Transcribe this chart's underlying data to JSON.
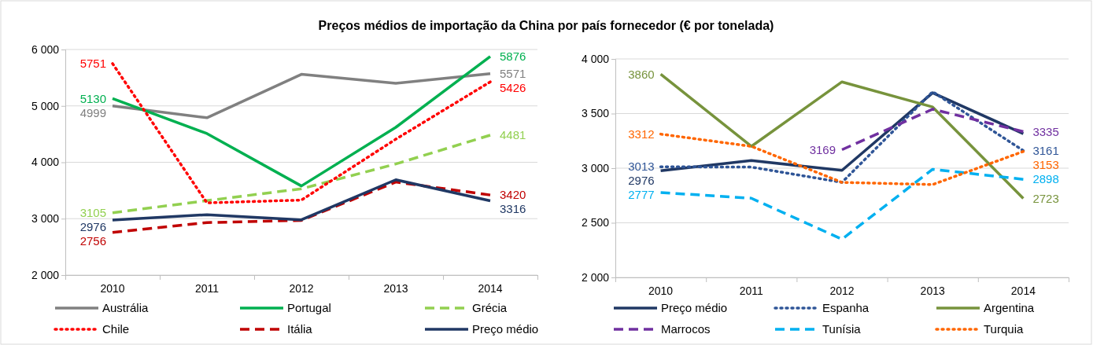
{
  "chart_data": [
    {
      "type": "line",
      "title": "Preços médios de importação da China por país fornecedor (€ por tonelada)",
      "categories": [
        "2010",
        "2011",
        "2012",
        "2013",
        "2014"
      ],
      "ylim": [
        2000,
        6000
      ],
      "yticks": [
        {
          "value": 2000,
          "label": "2 000"
        },
        {
          "value": 3000,
          "label": "3 000"
        },
        {
          "value": 4000,
          "label": "4 000"
        },
        {
          "value": 5000,
          "label": "5 000"
        },
        {
          "value": 6000,
          "label": "6 000"
        }
      ],
      "grid": "y",
      "legend": "bottom",
      "marker": "none",
      "series": [
        {
          "name": "Austrália",
          "color": "#808080",
          "line_style": "solid",
          "values": [
            4999,
            4790,
            5560,
            5400,
            5571
          ],
          "value_labels": [
            "4999",
            null,
            null,
            null,
            "5571"
          ]
        },
        {
          "name": "Portugal",
          "color": "#00b050",
          "line_style": "solid",
          "values": [
            5130,
            4510,
            3580,
            4620,
            5876
          ],
          "value_labels": [
            "5130",
            null,
            null,
            null,
            "5876"
          ]
        },
        {
          "name": "Grécia",
          "color": "#92d050",
          "line_style": "dashed",
          "values": [
            3105,
            3320,
            3530,
            3970,
            4481
          ],
          "value_labels": [
            "3105",
            null,
            null,
            null,
            "4481"
          ]
        },
        {
          "name": "Chile",
          "color": "#ff0000",
          "line_style": "dotted",
          "values": [
            5751,
            3280,
            3330,
            4410,
            5426
          ],
          "value_labels": [
            "5751",
            null,
            null,
            null,
            "5426"
          ]
        },
        {
          "name": "Itália",
          "color": "#c00000",
          "line_style": "dashed",
          "values": [
            2756,
            2930,
            2970,
            3650,
            3420
          ],
          "value_labels": [
            "2756",
            null,
            null,
            null,
            "3420"
          ]
        },
        {
          "name": "Preço médio",
          "color": "#203864",
          "line_style": "solid",
          "values": [
            2976,
            3070,
            2980,
            3690,
            3316
          ],
          "value_labels": [
            "2976",
            null,
            null,
            null,
            "3316"
          ]
        }
      ]
    },
    {
      "type": "line",
      "categories": [
        "2010",
        "2011",
        "2012",
        "2013",
        "2014"
      ],
      "ylim": [
        2000,
        4000
      ],
      "yticks": [
        {
          "value": 2000,
          "label": "2 000"
        },
        {
          "value": 2500,
          "label": "2 500"
        },
        {
          "value": 3000,
          "label": "3 000"
        },
        {
          "value": 3500,
          "label": "3 500"
        },
        {
          "value": 4000,
          "label": "4 000"
        }
      ],
      "grid": "y",
      "legend": "bottom",
      "marker": "none",
      "series": [
        {
          "name": "Preço médio",
          "color": "#203864",
          "line_style": "solid",
          "values": [
            2976,
            3070,
            2980,
            3690,
            3316
          ],
          "value_labels": [
            "2976",
            null,
            null,
            null,
            null
          ]
        },
        {
          "name": "Espanha",
          "color": "#2f5597",
          "line_style": "dotted",
          "values": [
            3013,
            3010,
            2870,
            3700,
            3161
          ],
          "value_labels": [
            "3013",
            null,
            null,
            null,
            "3161"
          ]
        },
        {
          "name": "Argentina",
          "color": "#77933c",
          "line_style": "solid",
          "values": [
            3860,
            3200,
            3790,
            3560,
            2723
          ],
          "value_labels": [
            "3860",
            null,
            null,
            null,
            "2723"
          ]
        },
        {
          "name": "Marrocos",
          "color": "#7030a0",
          "line_style": "dashed",
          "values": [
            null,
            null,
            3169,
            3540,
            3335
          ],
          "value_labels": [
            null,
            null,
            "3169",
            null,
            "3335"
          ]
        },
        {
          "name": "Tunísia",
          "color": "#00b0f0",
          "line_style": "dashed",
          "values": [
            2777,
            2725,
            2350,
            2990,
            2898
          ],
          "value_labels": [
            "2777",
            null,
            null,
            null,
            "2898"
          ]
        },
        {
          "name": "Turquia",
          "color": "#ff6600",
          "line_style": "dotted",
          "values": [
            3312,
            3200,
            2870,
            2850,
            3153
          ],
          "value_labels": [
            "3312",
            null,
            null,
            null,
            "3153"
          ]
        }
      ]
    }
  ]
}
